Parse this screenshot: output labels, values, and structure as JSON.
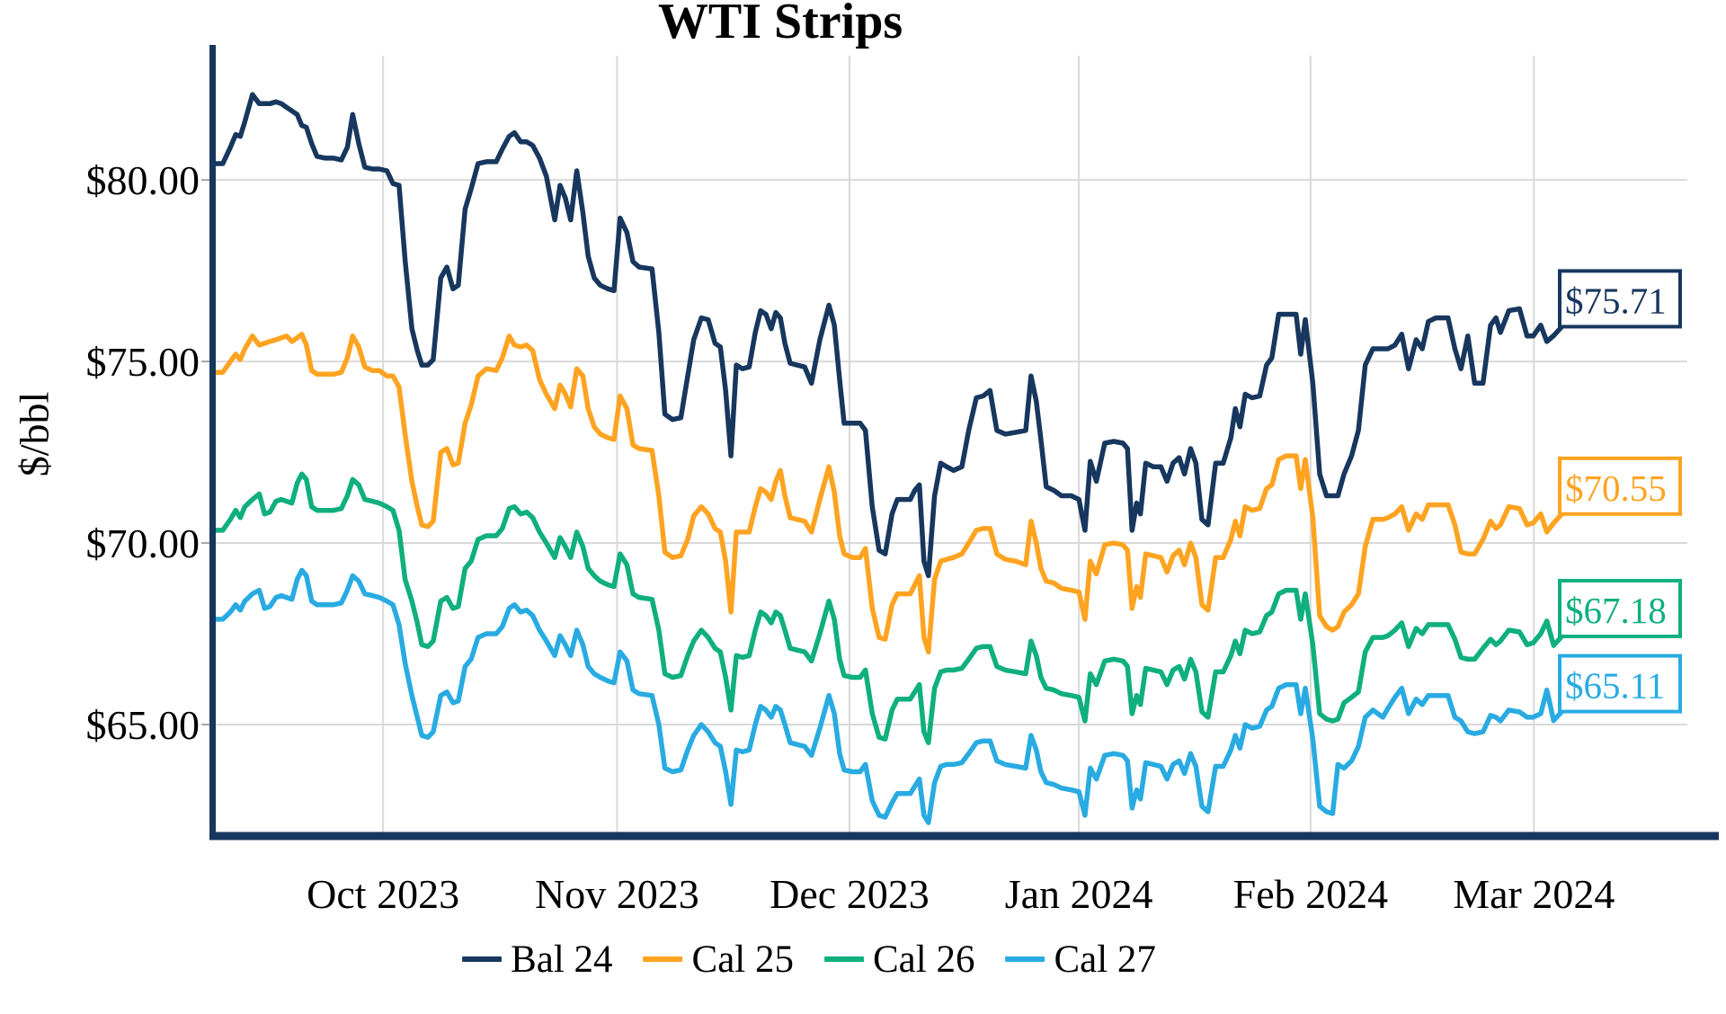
{
  "title": "WTI Strips",
  "y_axis": {
    "title": "$/bbl",
    "range": [
      61.98,
      83.42
    ],
    "ticks": [
      {
        "label": "$80.00",
        "v": 80
      },
      {
        "label": "$75.00",
        "v": 75
      },
      {
        "label": "$70.00",
        "v": 70
      },
      {
        "label": "$65.00",
        "v": 65
      }
    ]
  },
  "x_axis": {
    "unit": "days since 2023-09-08 (approx.)",
    "range": [
      0,
      194.2
    ],
    "ticks": [
      {
        "label": "Oct 2023",
        "t": 22.5
      },
      {
        "label": "Nov 2023",
        "t": 53.3
      },
      {
        "label": "Dec 2023",
        "t": 83.9
      },
      {
        "label": "Jan 2024",
        "t": 114.1
      },
      {
        "label": "Feb 2024",
        "t": 144.6
      },
      {
        "label": "Mar 2024",
        "t": 174.0
      }
    ]
  },
  "legend": {
    "items": [
      {
        "label": "Bal 24",
        "color": "#17375e"
      },
      {
        "label": "Cal 25",
        "color": "#ffa321"
      },
      {
        "label": "Cal 26",
        "color": "#0faf7e"
      },
      {
        "label": "Cal 27",
        "color": "#29abe2"
      }
    ]
  },
  "chart_data": {
    "type": "line",
    "title": "WTI Strips",
    "ylabel": "$/bbl",
    "grid": true,
    "legend_position": "bottom",
    "x_unit": "days since 2023-09-08 (approx.)",
    "x": [
      0,
      1.4,
      2.4,
      3.1,
      3.7,
      4.3,
      5.3,
      6.2,
      6.9,
      7.6,
      8.4,
      9.1,
      9.8,
      10.5,
      11.2,
      11.8,
      12.4,
      13.1,
      13.8,
      14.9,
      16.0,
      17.0,
      17.8,
      18.5,
      19.3,
      20.1,
      21.1,
      22.0,
      23.0,
      23.8,
      24.6,
      25.4,
      26.3,
      27.0,
      27.6,
      28.4,
      29.1,
      30.1,
      30.9,
      31.7,
      32.4,
      33.3,
      34.1,
      35.0,
      36.1,
      37.4,
      38.2,
      39.1,
      39.8,
      40.6,
      41.4,
      42.2,
      43.1,
      44.0,
      45.1,
      45.8,
      46.5,
      47.2,
      48.0,
      48.8,
      49.5,
      50.3,
      51.1,
      52.1,
      52.9,
      53.7,
      54.6,
      55.4,
      56.2,
      57.9,
      58.8,
      59.6,
      60.6,
      61.7,
      62.6,
      63.4,
      64.4,
      65.3,
      66.2,
      66.9,
      67.6,
      68.3,
      69.0,
      69.8,
      70.7,
      71.5,
      72.2,
      72.9,
      73.6,
      74.2,
      74.8,
      75.4,
      76.1,
      77.0,
      78.0,
      78.9,
      80.0,
      81.2,
      81.9,
      82.6,
      83.2,
      84.3,
      85.3,
      86.0,
      86.9,
      87.8,
      88.6,
      89.5,
      90.2,
      91.1,
      91.9,
      92.5,
      93.1,
      93.7,
      94.3,
      95.1,
      95.9,
      96.7,
      97.6,
      98.7,
      99.6,
      100.6,
      101.5,
      102.4,
      103.3,
      104.4,
      105.8,
      107.1,
      107.8,
      108.5,
      109.1,
      109.8,
      110.8,
      111.8,
      113.1,
      114.1,
      114.9,
      115.6,
      116.4,
      117.5,
      118.7,
      119.9,
      120.5,
      121.1,
      121.7,
      122.2,
      122.9,
      123.9,
      124.9,
      125.7,
      126.5,
      127.3,
      128.0,
      128.8,
      129.5,
      130.3,
      131.1,
      132.1,
      133.1,
      134.1,
      134.7,
      135.3,
      136.0,
      136.9,
      137.9,
      138.8,
      139.5,
      140.4,
      141.4,
      142.7,
      143.3,
      143.9,
      144.9,
      145.8,
      146.7,
      147.5,
      148.2,
      149.0,
      150.0,
      150.9,
      151.8,
      152.8,
      154.1,
      154.8,
      155.7,
      156.6,
      157.5,
      158.5,
      159.3,
      160.1,
      161.1,
      162.7,
      163.6,
      164.4,
      165.3,
      166.2,
      167.3,
      168.3,
      169.0,
      169.6,
      170.7,
      172.1,
      173.1,
      173.9,
      174.9,
      175.7,
      176.6
    ],
    "series": [
      {
        "name": "Bal 24",
        "color": "#17375e",
        "end_label": "$75.71",
        "end_value": 75.71,
        "values": [
          80.45,
          80.45,
          80.9,
          81.25,
          81.2,
          81.6,
          82.35,
          82.1,
          82.1,
          82.1,
          82.15,
          82.1,
          82.0,
          81.9,
          81.8,
          81.5,
          81.45,
          81.0,
          80.65,
          80.6,
          80.6,
          80.55,
          80.9,
          81.8,
          81.0,
          80.35,
          80.3,
          80.3,
          80.25,
          79.9,
          79.85,
          77.8,
          75.9,
          75.3,
          74.9,
          74.9,
          75.05,
          77.3,
          77.6,
          77.0,
          77.1,
          79.2,
          79.75,
          80.45,
          80.5,
          80.5,
          80.85,
          81.2,
          81.3,
          81.05,
          81.05,
          80.95,
          80.6,
          80.1,
          78.9,
          79.85,
          79.5,
          78.9,
          80.25,
          79.1,
          77.9,
          77.3,
          77.1,
          77.0,
          76.95,
          78.95,
          78.55,
          77.75,
          77.6,
          77.55,
          75.8,
          73.55,
          73.4,
          73.45,
          74.6,
          75.6,
          76.2,
          76.15,
          75.5,
          75.4,
          74.2,
          72.4,
          74.9,
          74.8,
          74.85,
          75.8,
          76.4,
          76.3,
          75.9,
          76.35,
          76.2,
          75.5,
          74.95,
          74.9,
          74.85,
          74.4,
          75.6,
          76.55,
          76.0,
          74.5,
          73.3,
          73.3,
          73.3,
          73.1,
          71.0,
          69.8,
          69.7,
          70.8,
          71.2,
          71.2,
          71.2,
          71.45,
          71.6,
          69.5,
          69.1,
          71.3,
          72.2,
          72.1,
          72.0,
          72.1,
          73.1,
          74.0,
          74.05,
          74.2,
          73.1,
          73.0,
          73.05,
          73.1,
          74.6,
          73.9,
          72.85,
          71.55,
          71.45,
          71.3,
          71.3,
          71.2,
          70.35,
          72.25,
          71.7,
          72.75,
          72.8,
          72.75,
          72.6,
          70.35,
          71.1,
          70.8,
          72.2,
          72.1,
          72.1,
          71.7,
          72.2,
          72.35,
          71.9,
          72.6,
          72.2,
          70.65,
          70.5,
          72.2,
          72.2,
          72.9,
          73.7,
          73.2,
          74.1,
          74.0,
          74.05,
          74.9,
          75.1,
          76.3,
          76.3,
          76.3,
          75.2,
          76.15,
          74.4,
          71.9,
          71.3,
          71.3,
          71.3,
          71.9,
          72.4,
          73.1,
          74.9,
          75.35,
          75.35,
          75.35,
          75.45,
          75.75,
          74.8,
          75.6,
          75.35,
          76.1,
          76.2,
          76.2,
          75.35,
          74.8,
          75.7,
          74.4,
          74.4,
          76.0,
          76.2,
          75.8,
          76.4,
          76.45,
          75.7,
          75.7,
          76.0,
          75.55,
          75.71
        ]
      },
      {
        "name": "Cal 25",
        "color": "#ffa321",
        "end_label": "$70.55",
        "end_value": 70.55,
        "values": [
          74.7,
          74.7,
          75.0,
          75.2,
          75.05,
          75.35,
          75.7,
          75.45,
          75.5,
          75.55,
          75.6,
          75.65,
          75.7,
          75.55,
          75.65,
          75.75,
          75.45,
          74.75,
          74.65,
          74.65,
          74.65,
          74.7,
          75.1,
          75.7,
          75.4,
          74.85,
          74.75,
          74.75,
          74.6,
          74.6,
          74.3,
          73.0,
          71.7,
          71.0,
          70.5,
          70.45,
          70.6,
          72.5,
          72.6,
          72.15,
          72.2,
          73.3,
          73.8,
          74.6,
          74.8,
          74.75,
          75.1,
          75.7,
          75.45,
          75.4,
          75.45,
          75.3,
          74.5,
          74.1,
          73.7,
          74.35,
          74.1,
          73.75,
          74.8,
          74.6,
          73.7,
          73.2,
          73.0,
          72.9,
          72.85,
          74.05,
          73.7,
          72.7,
          72.6,
          72.55,
          71.3,
          69.75,
          69.6,
          69.65,
          70.1,
          70.75,
          71.0,
          70.8,
          70.4,
          70.3,
          69.5,
          68.1,
          70.3,
          70.3,
          70.3,
          71.0,
          71.5,
          71.4,
          71.2,
          71.7,
          72.0,
          71.3,
          70.7,
          70.65,
          70.6,
          70.3,
          71.2,
          72.1,
          71.4,
          70.2,
          69.7,
          69.6,
          69.6,
          69.85,
          68.2,
          67.4,
          67.35,
          68.3,
          68.6,
          68.6,
          68.6,
          68.85,
          69.1,
          67.4,
          67.0,
          69.0,
          69.5,
          69.55,
          69.6,
          69.7,
          70.0,
          70.35,
          70.4,
          70.4,
          69.7,
          69.55,
          69.5,
          69.4,
          70.6,
          70.0,
          69.3,
          68.95,
          68.9,
          68.75,
          68.7,
          68.65,
          67.9,
          69.5,
          69.15,
          69.95,
          70.0,
          69.95,
          69.8,
          68.2,
          68.8,
          68.5,
          69.7,
          69.65,
          69.6,
          69.2,
          69.65,
          69.8,
          69.4,
          70.0,
          69.6,
          68.3,
          68.15,
          69.6,
          69.6,
          70.1,
          70.6,
          70.2,
          71.0,
          70.9,
          70.95,
          71.5,
          71.6,
          72.3,
          72.4,
          72.4,
          71.5,
          72.3,
          70.7,
          68.0,
          67.7,
          67.6,
          67.7,
          68.1,
          68.3,
          68.6,
          69.9,
          70.65,
          70.65,
          70.7,
          70.8,
          71.0,
          70.35,
          70.8,
          70.65,
          71.05,
          71.05,
          71.05,
          70.5,
          69.75,
          69.7,
          69.7,
          70.1,
          70.6,
          70.4,
          70.5,
          71.0,
          70.95,
          70.5,
          70.55,
          70.8,
          70.3,
          70.55
        ]
      },
      {
        "name": "Cal 26",
        "color": "#0faf7e",
        "end_label": "$67.18",
        "end_value": 67.18,
        "values": [
          70.35,
          70.35,
          70.65,
          70.9,
          70.7,
          71.0,
          71.2,
          71.35,
          70.8,
          70.85,
          71.15,
          71.2,
          71.15,
          71.1,
          71.65,
          71.9,
          71.75,
          71.0,
          70.9,
          70.9,
          70.9,
          70.95,
          71.3,
          71.75,
          71.6,
          71.2,
          71.15,
          71.1,
          71.0,
          70.9,
          70.35,
          69.0,
          68.4,
          67.8,
          67.2,
          67.15,
          67.3,
          68.4,
          68.5,
          68.2,
          68.25,
          69.3,
          69.5,
          70.1,
          70.2,
          70.2,
          70.4,
          70.95,
          71.0,
          70.8,
          70.85,
          70.7,
          70.3,
          70.0,
          69.6,
          70.15,
          69.9,
          69.6,
          70.3,
          69.9,
          69.3,
          69.1,
          68.95,
          68.85,
          68.8,
          69.7,
          69.4,
          68.6,
          68.5,
          68.45,
          67.6,
          66.4,
          66.3,
          66.35,
          66.9,
          67.3,
          67.6,
          67.4,
          67.1,
          67.0,
          66.3,
          65.4,
          66.9,
          66.85,
          66.9,
          67.6,
          68.1,
          68.0,
          67.8,
          68.1,
          68.0,
          67.6,
          67.1,
          67.05,
          67.0,
          66.75,
          67.5,
          68.4,
          67.9,
          66.8,
          66.35,
          66.3,
          66.3,
          66.5,
          65.3,
          64.65,
          64.6,
          65.4,
          65.7,
          65.7,
          65.7,
          65.9,
          66.1,
          64.8,
          64.5,
          66.0,
          66.45,
          66.5,
          66.5,
          66.55,
          66.8,
          67.1,
          67.15,
          67.15,
          66.6,
          66.5,
          66.45,
          66.4,
          67.3,
          66.9,
          66.3,
          66.0,
          65.95,
          65.85,
          65.8,
          65.75,
          65.1,
          66.4,
          66.1,
          66.75,
          66.8,
          66.75,
          66.6,
          65.3,
          65.8,
          65.55,
          66.55,
          66.5,
          66.45,
          66.1,
          66.5,
          66.6,
          66.25,
          66.8,
          66.45,
          65.35,
          65.2,
          66.45,
          66.45,
          66.9,
          67.3,
          66.95,
          67.6,
          67.5,
          67.55,
          68.0,
          68.1,
          68.6,
          68.7,
          68.7,
          67.9,
          68.6,
          67.2,
          65.3,
          65.15,
          65.1,
          65.15,
          65.6,
          65.75,
          65.9,
          67.0,
          67.4,
          67.4,
          67.45,
          67.6,
          67.8,
          67.15,
          67.65,
          67.5,
          67.75,
          67.75,
          67.75,
          67.35,
          66.85,
          66.8,
          66.8,
          67.1,
          67.35,
          67.2,
          67.3,
          67.6,
          67.55,
          67.2,
          67.25,
          67.5,
          67.85,
          67.18
        ]
      },
      {
        "name": "Cal 27",
        "color": "#29abe2",
        "end_label": "$65.11",
        "end_value": 65.11,
        "values": [
          67.9,
          67.9,
          68.1,
          68.3,
          68.15,
          68.4,
          68.6,
          68.7,
          68.2,
          68.25,
          68.5,
          68.55,
          68.5,
          68.45,
          69.0,
          69.25,
          69.1,
          68.4,
          68.3,
          68.3,
          68.3,
          68.35,
          68.7,
          69.1,
          68.95,
          68.6,
          68.55,
          68.5,
          68.4,
          68.3,
          67.75,
          66.7,
          65.8,
          65.2,
          64.7,
          64.65,
          64.8,
          65.8,
          65.9,
          65.6,
          65.65,
          66.6,
          66.8,
          67.4,
          67.5,
          67.5,
          67.7,
          68.2,
          68.3,
          68.1,
          68.15,
          68.0,
          67.6,
          67.3,
          66.9,
          67.45,
          67.2,
          66.9,
          67.6,
          67.2,
          66.6,
          66.4,
          66.3,
          66.2,
          66.15,
          67.0,
          66.75,
          65.95,
          65.85,
          65.8,
          65.0,
          63.8,
          63.7,
          63.75,
          64.3,
          64.7,
          65.0,
          64.8,
          64.5,
          64.4,
          63.7,
          62.8,
          64.3,
          64.25,
          64.3,
          65.0,
          65.5,
          65.4,
          65.2,
          65.5,
          65.4,
          65.0,
          64.5,
          64.45,
          64.4,
          64.15,
          64.9,
          65.8,
          65.3,
          64.2,
          63.75,
          63.7,
          63.7,
          63.9,
          62.9,
          62.5,
          62.45,
          62.85,
          63.1,
          63.1,
          63.1,
          63.3,
          63.5,
          62.5,
          62.3,
          63.4,
          63.85,
          63.9,
          63.9,
          63.95,
          64.2,
          64.5,
          64.55,
          64.55,
          64.0,
          63.9,
          63.85,
          63.8,
          64.7,
          64.3,
          63.7,
          63.4,
          63.35,
          63.25,
          63.2,
          63.15,
          62.5,
          63.8,
          63.5,
          64.15,
          64.2,
          64.15,
          64.0,
          62.7,
          63.2,
          62.95,
          63.95,
          63.9,
          63.85,
          63.5,
          63.9,
          64.0,
          63.65,
          64.2,
          63.85,
          62.75,
          62.6,
          63.85,
          63.85,
          64.3,
          64.7,
          64.35,
          65.0,
          64.9,
          64.95,
          65.4,
          65.5,
          66.0,
          66.1,
          66.1,
          65.3,
          66.0,
          64.6,
          62.75,
          62.6,
          62.55,
          63.9,
          63.8,
          64.0,
          64.4,
          65.2,
          65.4,
          65.2,
          65.45,
          65.75,
          66.0,
          65.3,
          65.7,
          65.55,
          65.8,
          65.8,
          65.8,
          65.2,
          65.1,
          64.8,
          64.75,
          64.8,
          65.25,
          65.2,
          65.1,
          65.4,
          65.35,
          65.2,
          65.2,
          65.3,
          65.95,
          65.11
        ]
      }
    ]
  },
  "colors": {
    "axis": "#17375e",
    "grid": "#d9d9d9",
    "tick": "#a6a6a6",
    "text": "#000000",
    "background": "#ffffff"
  }
}
